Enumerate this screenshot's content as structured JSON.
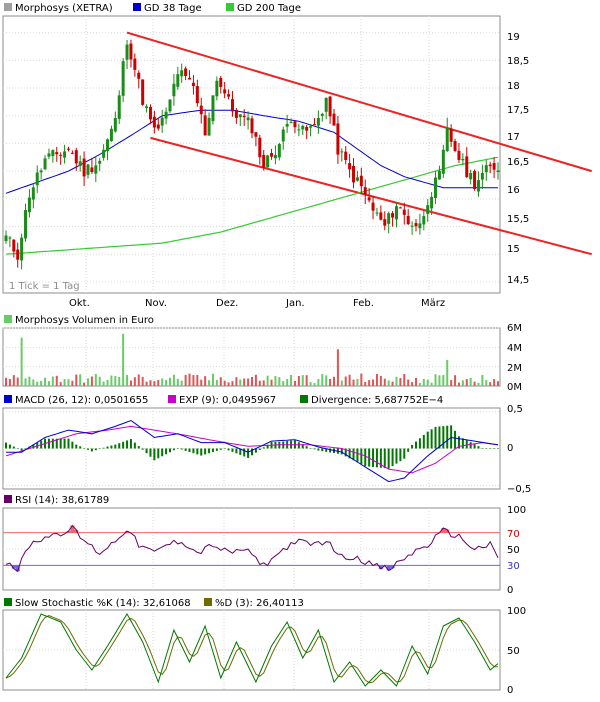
{
  "colors": {
    "candle_up": "#1a8c1a",
    "candle_down": "#cc0000",
    "gd38": "#0000cc",
    "gd200": "#33cc33",
    "trend": "#ee2222",
    "volume_up": "#66cc66",
    "volume_down": "#dd5555",
    "macd": "#0000cc",
    "exp": "#cc00cc",
    "divergence": "#007700",
    "rsi": "#660066",
    "rsi_upper": "#ee6666",
    "rsi_lower": "#6666ee",
    "stoch_k": "#007700",
    "stoch_d": "#6b6b00"
  },
  "panels": {
    "price": {
      "legend": [
        {
          "label": "Morphosys (XETRA)",
          "color": "#a0a0a0"
        },
        {
          "label": "GD 38 Tage",
          "color": "#0000cc"
        },
        {
          "label": "GD 200 Tage",
          "color": "#33cc33"
        }
      ],
      "tick_note": "1 Tick = 1 Tag",
      "y_ticks": [
        "19",
        "18,5",
        "18",
        "17,5",
        "17",
        "16,5",
        "16",
        "15,5",
        "15",
        "14,5"
      ],
      "x_ticks": [
        "Okt.",
        "Nov.",
        "Dez.",
        "Jan.",
        "Feb.",
        "März"
      ]
    },
    "volume": {
      "legend": [
        {
          "label": "Morphosys Volumen in Euro",
          "color": "#66cc66"
        }
      ],
      "y_ticks": [
        "6M",
        "4M",
        "2M",
        "0M"
      ]
    },
    "macd": {
      "legend": [
        {
          "label": "MACD (26, 12): 0,0501655",
          "color": "#0000cc"
        },
        {
          "label": "EXP (9): 0,0495967",
          "color": "#cc00cc"
        },
        {
          "label": "Divergence: 5,687752E−4",
          "color": "#007700"
        }
      ],
      "y_ticks": [
        "0,5",
        "0",
        "−0,5"
      ]
    },
    "rsi": {
      "legend": [
        {
          "label": "RSI (14): 38,61789",
          "color": "#660066"
        }
      ],
      "y_ticks": [
        "100",
        "70",
        "50",
        "30",
        "0"
      ]
    },
    "stoch": {
      "legend": [
        {
          "label": "Slow Stochastic %K (14): 32,61068",
          "color": "#007700"
        },
        {
          "label": "%D (3): 26,40113",
          "color": "#6b6b00"
        }
      ],
      "y_ticks": [
        "100",
        "50",
        "0"
      ]
    }
  },
  "chart_data": [
    {
      "type": "candlestick",
      "series": [
        {
          "name": "Morphosys (XETRA)"
        },
        {
          "name": "GD 38 Tage"
        },
        {
          "name": "GD 200 Tage"
        }
      ],
      "x_ticks": [
        "Okt.",
        "Nov.",
        "Dez.",
        "Jan.",
        "Feb.",
        "März"
      ],
      "ylim": [
        14.3,
        19.3
      ],
      "close_anchors": [
        [
          0,
          15.3
        ],
        [
          3,
          15.0
        ],
        [
          6,
          16.1
        ],
        [
          10,
          16.7
        ],
        [
          16,
          16.9
        ],
        [
          20,
          16.5
        ],
        [
          24,
          16.7
        ],
        [
          28,
          17.4
        ],
        [
          31,
          18.9
        ],
        [
          35,
          17.8
        ],
        [
          38,
          17.2
        ],
        [
          41,
          17.5
        ],
        [
          44,
          18.3
        ],
        [
          48,
          18.0
        ],
        [
          51,
          17.2
        ],
        [
          54,
          18.2
        ],
        [
          58,
          17.6
        ],
        [
          63,
          17.3
        ],
        [
          66,
          16.6
        ],
        [
          70,
          17.0
        ],
        [
          73,
          17.5
        ],
        [
          76,
          17.2
        ],
        [
          79,
          17.3
        ],
        [
          82,
          17.8
        ],
        [
          85,
          16.9
        ],
        [
          88,
          16.5
        ],
        [
          91,
          16.2
        ],
        [
          94,
          15.8
        ],
        [
          97,
          15.5
        ],
        [
          100,
          15.9
        ],
        [
          103,
          15.6
        ],
        [
          106,
          15.5
        ],
        [
          108,
          16.0
        ],
        [
          111,
          16.4
        ],
        [
          113,
          17.2
        ],
        [
          115,
          16.9
        ],
        [
          117,
          16.6
        ],
        [
          120,
          16.3
        ],
        [
          123,
          16.5
        ],
        [
          126,
          16.6
        ]
      ],
      "gd38_anchors": [
        [
          0,
          16.1
        ],
        [
          8,
          16.3
        ],
        [
          16,
          16.5
        ],
        [
          24,
          16.8
        ],
        [
          31,
          17.1
        ],
        [
          40,
          17.5
        ],
        [
          50,
          17.6
        ],
        [
          58,
          17.6
        ],
        [
          66,
          17.5
        ],
        [
          75,
          17.4
        ],
        [
          84,
          17.2
        ],
        [
          90,
          16.9
        ],
        [
          96,
          16.6
        ],
        [
          102,
          16.4
        ],
        [
          107,
          16.3
        ],
        [
          112,
          16.2
        ],
        [
          118,
          16.2
        ],
        [
          126,
          16.2
        ]
      ],
      "gd200_anchors": [
        [
          0,
          15.0
        ],
        [
          20,
          15.1
        ],
        [
          40,
          15.2
        ],
        [
          55,
          15.4
        ],
        [
          70,
          15.7
        ],
        [
          85,
          16.0
        ],
        [
          100,
          16.3
        ],
        [
          115,
          16.6
        ],
        [
          126,
          16.75
        ]
      ],
      "trend_upper": [
        [
          31,
          19.0
        ],
        [
          150,
          16.5
        ]
      ],
      "trend_lower": [
        [
          37,
          17.1
        ],
        [
          150,
          15.0
        ]
      ]
    },
    {
      "type": "bar",
      "name": "Morphosys Volumen in Euro",
      "ylim": [
        0,
        6000000
      ],
      "y_ticks": [
        "6M",
        "4M",
        "2M",
        "0M"
      ],
      "peaks_millions": [
        [
          4,
          5.0
        ],
        [
          30,
          5.4
        ],
        [
          85,
          3.8
        ],
        [
          113,
          2.7
        ]
      ]
    },
    {
      "type": "line",
      "series": [
        {
          "name": "MACD (26, 12)",
          "last": 0.0501655
        },
        {
          "name": "EXP (9)",
          "last": 0.0495967
        },
        {
          "name": "Divergence",
          "last": 0.0005687752
        }
      ],
      "ylim": [
        -0.55,
        0.55
      ],
      "macd_anchors": [
        [
          0,
          -0.05
        ],
        [
          4,
          -0.05
        ],
        [
          10,
          0.15
        ],
        [
          16,
          0.25
        ],
        [
          22,
          0.2
        ],
        [
          28,
          0.3
        ],
        [
          32,
          0.38
        ],
        [
          38,
          0.15
        ],
        [
          44,
          0.2
        ],
        [
          50,
          0.08
        ],
        [
          56,
          0.08
        ],
        [
          62,
          -0.05
        ],
        [
          68,
          0.1
        ],
        [
          74,
          0.12
        ],
        [
          80,
          0.02
        ],
        [
          86,
          -0.05
        ],
        [
          92,
          -0.25
        ],
        [
          98,
          -0.45
        ],
        [
          102,
          -0.4
        ],
        [
          108,
          -0.1
        ],
        [
          114,
          0.15
        ],
        [
          120,
          0.1
        ],
        [
          126,
          0.05
        ]
      ],
      "exp_anchors": [
        [
          0,
          -0.1
        ],
        [
          6,
          0.0
        ],
        [
          12,
          0.1
        ],
        [
          18,
          0.2
        ],
        [
          26,
          0.25
        ],
        [
          32,
          0.3
        ],
        [
          38,
          0.25
        ],
        [
          46,
          0.18
        ],
        [
          54,
          0.1
        ],
        [
          62,
          0.03
        ],
        [
          70,
          0.05
        ],
        [
          78,
          0.05
        ],
        [
          86,
          0.0
        ],
        [
          92,
          -0.1
        ],
        [
          98,
          -0.28
        ],
        [
          104,
          -0.33
        ],
        [
          110,
          -0.2
        ],
        [
          116,
          0.03
        ],
        [
          122,
          0.08
        ],
        [
          126,
          0.05
        ]
      ]
    },
    {
      "type": "line",
      "name": "RSI (14)",
      "last": 38.61789,
      "ylim": [
        0,
        100
      ],
      "levels": [
        70,
        30
      ],
      "anchors": [
        [
          0,
          35
        ],
        [
          3,
          25
        ],
        [
          6,
          55
        ],
        [
          10,
          65
        ],
        [
          14,
          70
        ],
        [
          17,
          75
        ],
        [
          20,
          60
        ],
        [
          24,
          45
        ],
        [
          28,
          60
        ],
        [
          31,
          75
        ],
        [
          34,
          55
        ],
        [
          38,
          45
        ],
        [
          41,
          55
        ],
        [
          45,
          60
        ],
        [
          49,
          45
        ],
        [
          53,
          55
        ],
        [
          57,
          45
        ],
        [
          61,
          50
        ],
        [
          66,
          30
        ],
        [
          70,
          45
        ],
        [
          74,
          60
        ],
        [
          78,
          55
        ],
        [
          82,
          60
        ],
        [
          86,
          40
        ],
        [
          90,
          40
        ],
        [
          94,
          30
        ],
        [
          98,
          25
        ],
        [
          101,
          35
        ],
        [
          104,
          45
        ],
        [
          108,
          55
        ],
        [
          112,
          72
        ],
        [
          116,
          65
        ],
        [
          120,
          50
        ],
        [
          124,
          55
        ],
        [
          126,
          39
        ]
      ]
    },
    {
      "type": "line",
      "series": [
        {
          "name": "Slow Stochastic %K (14)",
          "last": 32.61068
        },
        {
          "name": "%D (3)",
          "last": 26.40113
        }
      ],
      "ylim": [
        0,
        100
      ],
      "k_anchors": [
        [
          0,
          15
        ],
        [
          4,
          40
        ],
        [
          9,
          95
        ],
        [
          14,
          85
        ],
        [
          18,
          50
        ],
        [
          22,
          25
        ],
        [
          26,
          55
        ],
        [
          31,
          95
        ],
        [
          35,
          60
        ],
        [
          39,
          10
        ],
        [
          43,
          75
        ],
        [
          47,
          35
        ],
        [
          51,
          80
        ],
        [
          55,
          15
        ],
        [
          59,
          60
        ],
        [
          64,
          10
        ],
        [
          68,
          55
        ],
        [
          72,
          85
        ],
        [
          76,
          40
        ],
        [
          80,
          75
        ],
        [
          84,
          10
        ],
        [
          88,
          35
        ],
        [
          92,
          5
        ],
        [
          96,
          25
        ],
        [
          100,
          5
        ],
        [
          104,
          55
        ],
        [
          108,
          20
        ],
        [
          112,
          80
        ],
        [
          116,
          90
        ],
        [
          120,
          60
        ],
        [
          124,
          25
        ],
        [
          126,
          33
        ]
      ]
    }
  ]
}
